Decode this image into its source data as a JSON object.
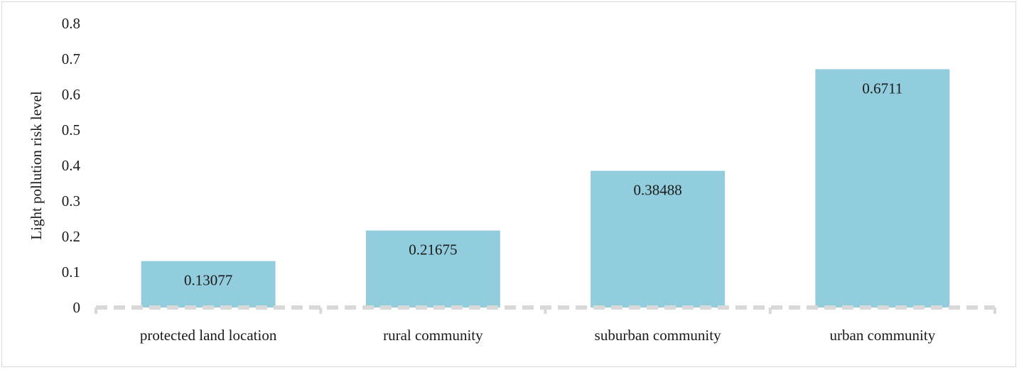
{
  "chart_data": {
    "type": "bar",
    "title": "",
    "xlabel": "",
    "ylabel": "Light pollution risk level",
    "categories": [
      "protected land location",
      "rural community",
      "suburban community",
      "urban community"
    ],
    "values": [
      0.13077,
      0.21675,
      0.38488,
      0.6711
    ],
    "data_labels": [
      "0.13077",
      "0.21675",
      "0.38488",
      "0.6711"
    ],
    "yticks": [
      "0",
      "0.1",
      "0.2",
      "0.3",
      "0.4",
      "0.5",
      "0.6",
      "0.7",
      "0.8"
    ],
    "ylim": [
      0,
      0.8
    ],
    "grid": false,
    "legend": "none",
    "bar_color": "#92cddd",
    "axis_color": "#d9d9d9"
  }
}
